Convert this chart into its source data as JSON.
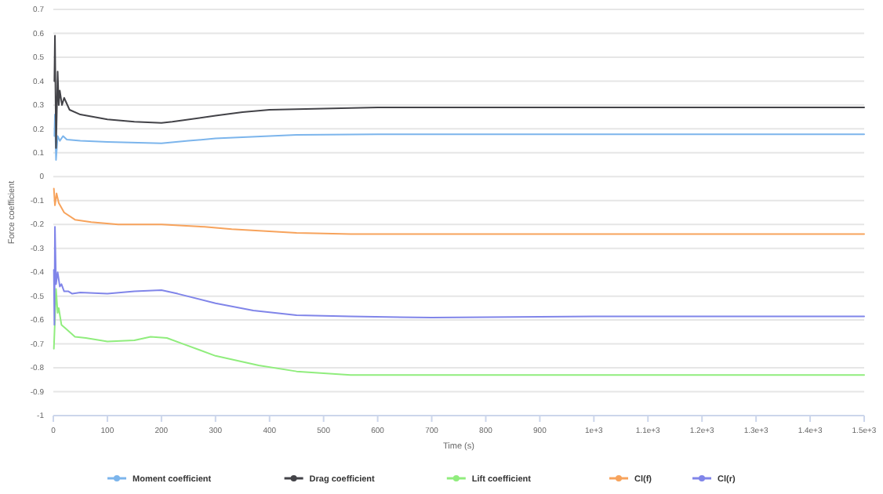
{
  "chart_data": {
    "type": "line",
    "xlabel": "Time (s)",
    "ylabel": "Force coefficient",
    "xlim": [
      0,
      1500
    ],
    "ylim": [
      -1,
      0.7
    ],
    "xticks": [
      0,
      100,
      200,
      300,
      400,
      500,
      600,
      700,
      800,
      900,
      {
        "value": 1000,
        "label": "1e+3"
      },
      {
        "value": 1100,
        "label": "1.1e+3"
      },
      {
        "value": 1200,
        "label": "1.2e+3"
      },
      {
        "value": 1300,
        "label": "1.3e+3"
      },
      {
        "value": 1400,
        "label": "1.4e+3"
      },
      {
        "value": 1500,
        "label": "1.5e+3"
      }
    ],
    "yticks": [
      -1,
      -0.9,
      -0.8,
      -0.7,
      -0.6,
      -0.5,
      -0.4,
      -0.3,
      -0.2,
      -0.1,
      0,
      0.1,
      0.2,
      0.3,
      0.4,
      0.5,
      0.6,
      0.7
    ],
    "grid": "y",
    "legend": "bottom",
    "line_style": "solid",
    "series": [
      {
        "name": "Moment coefficient",
        "color": "#7cb5ec",
        "x": [
          2,
          3,
          5,
          8,
          12,
          18,
          25,
          50,
          100,
          200,
          250,
          300,
          450,
          600,
          1000,
          1500
        ],
        "values": [
          0.17,
          0.26,
          0.07,
          0.17,
          0.15,
          0.17,
          0.155,
          0.15,
          0.145,
          0.14,
          0.15,
          0.16,
          0.175,
          0.177,
          0.177,
          0.177
        ]
      },
      {
        "name": "Drag coefficient",
        "color": "#434348",
        "x": [
          2,
          3,
          5,
          8,
          10,
          12,
          16,
          20,
          30,
          50,
          100,
          150,
          200,
          220,
          300,
          350,
          400,
          500,
          600,
          1000,
          1500
        ],
        "values": [
          0.4,
          0.59,
          0.12,
          0.44,
          0.3,
          0.36,
          0.3,
          0.33,
          0.28,
          0.26,
          0.24,
          0.23,
          0.225,
          0.23,
          0.255,
          0.27,
          0.28,
          0.285,
          0.29,
          0.29,
          0.29
        ]
      },
      {
        "name": "Lift coefficient",
        "color": "#90ed7d",
        "x": [
          1,
          3,
          5,
          8,
          10,
          15,
          25,
          40,
          60,
          100,
          150,
          180,
          210,
          240,
          300,
          380,
          450,
          550,
          1000,
          1500
        ],
        "values": [
          -0.72,
          -0.6,
          -0.47,
          -0.57,
          -0.55,
          -0.62,
          -0.64,
          -0.67,
          -0.675,
          -0.69,
          -0.685,
          -0.67,
          -0.675,
          -0.7,
          -0.75,
          -0.79,
          -0.815,
          -0.83,
          -0.83,
          -0.83
        ]
      },
      {
        "name": "Cl(f)",
        "color": "#f7a35c",
        "x": [
          1,
          3,
          6,
          10,
          20,
          40,
          70,
          120,
          200,
          280,
          330,
          450,
          550,
          1000,
          1500
        ],
        "values": [
          -0.05,
          -0.12,
          -0.07,
          -0.11,
          -0.15,
          -0.18,
          -0.19,
          -0.2,
          -0.2,
          -0.21,
          -0.22,
          -0.235,
          -0.24,
          -0.24,
          -0.24
        ]
      },
      {
        "name": "Cl(r)",
        "color": "#8085e9",
        "x": [
          1,
          2,
          3,
          5,
          8,
          12,
          15,
          20,
          28,
          35,
          50,
          100,
          150,
          200,
          230,
          300,
          370,
          450,
          550,
          700,
          1000,
          1500
        ],
        "values": [
          -0.39,
          -0.62,
          -0.21,
          -0.45,
          -0.4,
          -0.46,
          -0.45,
          -0.48,
          -0.48,
          -0.49,
          -0.485,
          -0.49,
          -0.48,
          -0.475,
          -0.49,
          -0.53,
          -0.56,
          -0.58,
          -0.585,
          -0.59,
          -0.585,
          -0.585
        ]
      }
    ]
  }
}
